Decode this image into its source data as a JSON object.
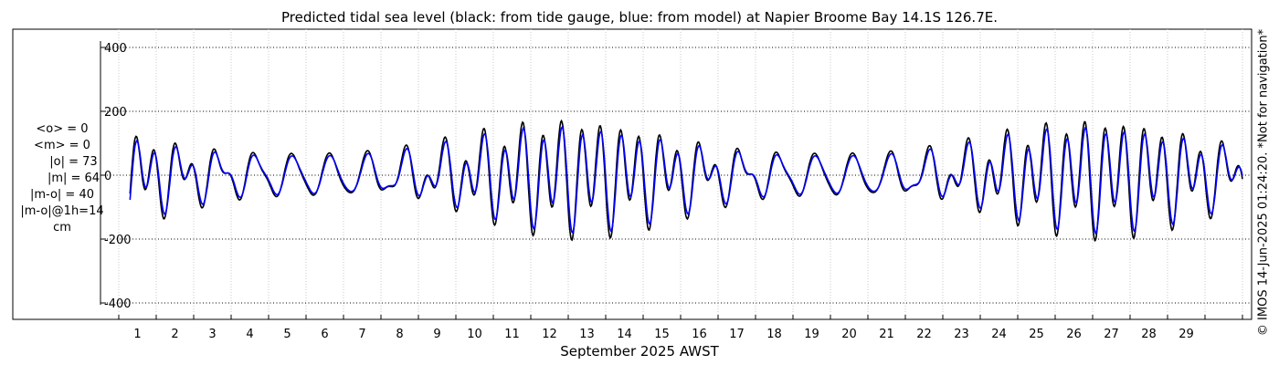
{
  "chart_data": {
    "type": "line",
    "title": "Predicted tidal sea level (black: from tide gauge, blue: from model) at Napier Broome Bay 14.1S 126.7E.",
    "xlabel": "September 2025 AWST",
    "ylabel": "cm",
    "xlim": [
      0,
      30
    ],
    "ylim": [
      -460,
      460
    ],
    "yticks": [
      400,
      200,
      0,
      -200,
      -400
    ],
    "ytick_labels": [
      "400",
      "200",
      "0",
      "-200",
      "-400"
    ],
    "xtick_labels": [
      "1",
      "2",
      "3",
      "4",
      "5",
      "6",
      "7",
      "8",
      "9",
      "10",
      "11",
      "12",
      "13",
      "14",
      "15",
      "16",
      "17",
      "18",
      "19",
      "20",
      "21",
      "22",
      "23",
      "24",
      "25",
      "26",
      "27",
      "28",
      "29"
    ],
    "grid": true,
    "series": [
      {
        "name": "from tide gauge",
        "color": "#000000",
        "t_start": 0.3,
        "t_end": 30.0,
        "spring_days": [
          12.0,
          26.0
        ],
        "neap_days": [
          4.4,
          18.0
        ],
        "semidiurnal_max": 150,
        "semidiurnal_min": 10,
        "diurnal_max": 62,
        "diurnal_min": 45
      },
      {
        "name": "from model",
        "color": "#0000ff",
        "t_start": 0.3,
        "t_end": 30.0,
        "spring_days": [
          12.0,
          26.0
        ],
        "neap_days": [
          4.4,
          18.0
        ],
        "semidiurnal_max": 132,
        "semidiurnal_min": 8,
        "diurnal_max": 55,
        "diurnal_min": 40
      }
    ],
    "stats": {
      "mean_obs": "<o> = 0",
      "mean_model": "<m> = 0",
      "abs_obs": "|o| = 73",
      "abs_model": "|m| = 64",
      "abs_diff": "|m-o| = 40",
      "abs_diff_1h": "|m-o|@1h=14",
      "unit": "cm"
    }
  },
  "credit": "© IMOS 14-Jun-2025 01:24:20. *Not for navigation*"
}
